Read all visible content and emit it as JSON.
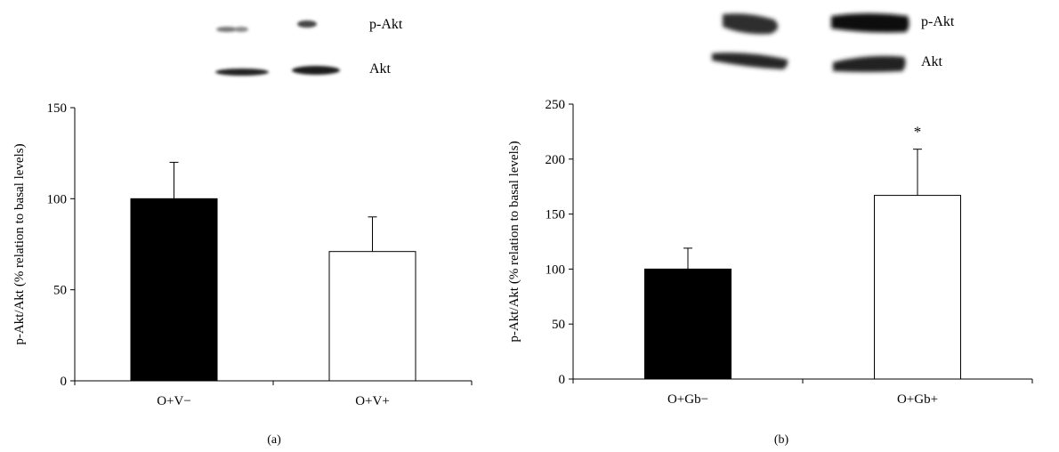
{
  "panels": [
    {
      "panel_label": "(a)",
      "blot": {
        "rows": [
          "p-Akt",
          "Akt"
        ]
      }
    },
    {
      "panel_label": "(b)",
      "blot": {
        "rows": [
          "p-Akt",
          "Akt"
        ]
      }
    }
  ],
  "chart_data": [
    {
      "type": "bar",
      "title": "",
      "xlabel": "",
      "ylabel": "p-Akt/Akt (% relation to basal levels)",
      "categories": [
        "O+V−",
        "O+V+"
      ],
      "values": [
        100,
        71
      ],
      "errors": [
        20,
        19
      ],
      "significance": [
        "",
        ""
      ],
      "bar_colors": [
        "#000000",
        "#ffffff"
      ],
      "ylim": [
        0,
        150
      ],
      "yticks": [
        0,
        50,
        100,
        150
      ],
      "grid": false
    },
    {
      "type": "bar",
      "title": "",
      "xlabel": "",
      "ylabel": "p-Akt/Akt (% relation to basal levels)",
      "categories": [
        "O+Gb−",
        "O+Gb+"
      ],
      "values": [
        100,
        167
      ],
      "errors": [
        19,
        42
      ],
      "significance": [
        "",
        "*"
      ],
      "bar_colors": [
        "#000000",
        "#ffffff"
      ],
      "ylim": [
        0,
        250
      ],
      "yticks": [
        0,
        50,
        100,
        150,
        200,
        250
      ],
      "grid": false
    }
  ]
}
